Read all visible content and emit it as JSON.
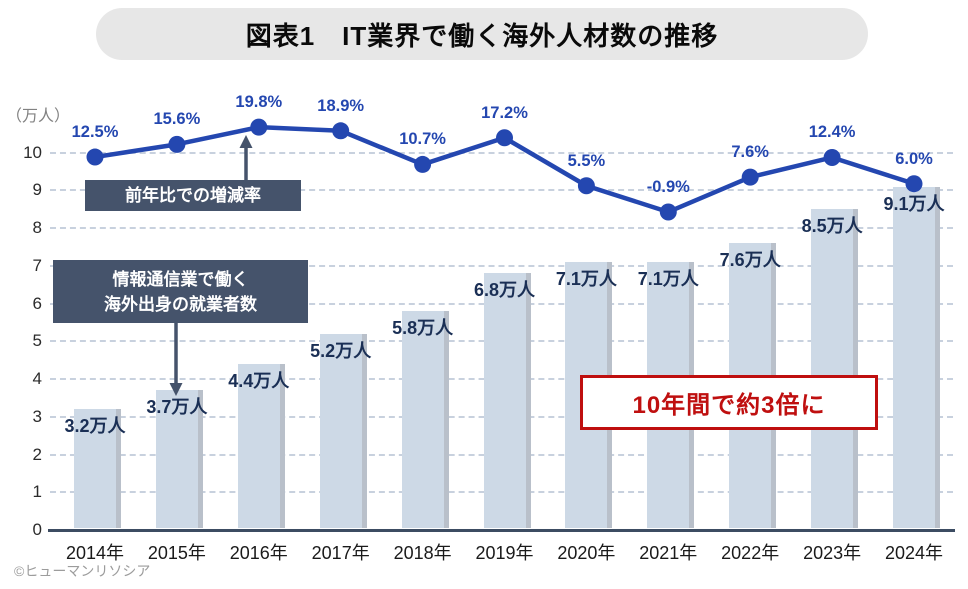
{
  "title": {
    "text": "図表1　IT業界で働く海外人材数の推移"
  },
  "y_axis": {
    "unit_label": "（万人）",
    "ticks": [
      0,
      1,
      2,
      3,
      4,
      5,
      6,
      7,
      8,
      9,
      10
    ]
  },
  "annotations": {
    "line_note": "前年比での増減率",
    "bar_note_line1": "情報通信業で働く",
    "bar_note_line2": "海外出身の就業者数",
    "highlight": "10年間で約3倍に"
  },
  "footer": {
    "credit": "©ヒューマンリソシア"
  },
  "colors": {
    "bar_fill": "#cdd9e6",
    "bar_shadow": "#b9c0ca",
    "line": "#2447b0",
    "pct_label": "#2447b0",
    "bar_value_label": "#1a2f55",
    "note_bg": "#45536b",
    "highlight_red": "#bf0f0f",
    "grid": "#c8d1de",
    "baseline": "#3c4c62"
  },
  "chart_data": {
    "type": "bar+line",
    "title": "図表1　IT業界で働く海外人材数の推移",
    "categories": [
      "2014年",
      "2015年",
      "2016年",
      "2017年",
      "2018年",
      "2019年",
      "2020年",
      "2021年",
      "2022年",
      "2023年",
      "2024年"
    ],
    "series": [
      {
        "name": "情報通信業で働く海外出身の就業者数",
        "type": "bar",
        "unit": "万人",
        "values": [
          3.2,
          3.7,
          4.4,
          5.2,
          5.8,
          6.8,
          7.1,
          7.1,
          7.6,
          8.5,
          9.1
        ],
        "labels": [
          "3.2万人",
          "3.7万人",
          "4.4万人",
          "5.2万人",
          "5.8万人",
          "6.8万人",
          "7.1万人",
          "7.1万人",
          "7.6万人",
          "8.5万人",
          "9.1万人"
        ]
      },
      {
        "name": "前年比での増減率",
        "type": "line",
        "unit": "%",
        "values": [
          12.5,
          15.6,
          19.8,
          18.9,
          10.7,
          17.2,
          5.5,
          -0.9,
          7.6,
          12.4,
          6.0
        ],
        "labels": [
          "12.5%",
          "15.6%",
          "19.8%",
          "18.9%",
          "10.7%",
          "17.2%",
          "5.5%",
          "-0.9%",
          "7.6%",
          "12.4%",
          "6.0%"
        ]
      }
    ],
    "ylabel": "（万人）",
    "ylim": [
      0,
      10.5
    ],
    "yticks": [
      0,
      1,
      2,
      3,
      4,
      5,
      6,
      7,
      8,
      9,
      10
    ],
    "grid": "horizontal-dashed",
    "legend": "none",
    "annotation_text": "10年間で約3倍に"
  }
}
